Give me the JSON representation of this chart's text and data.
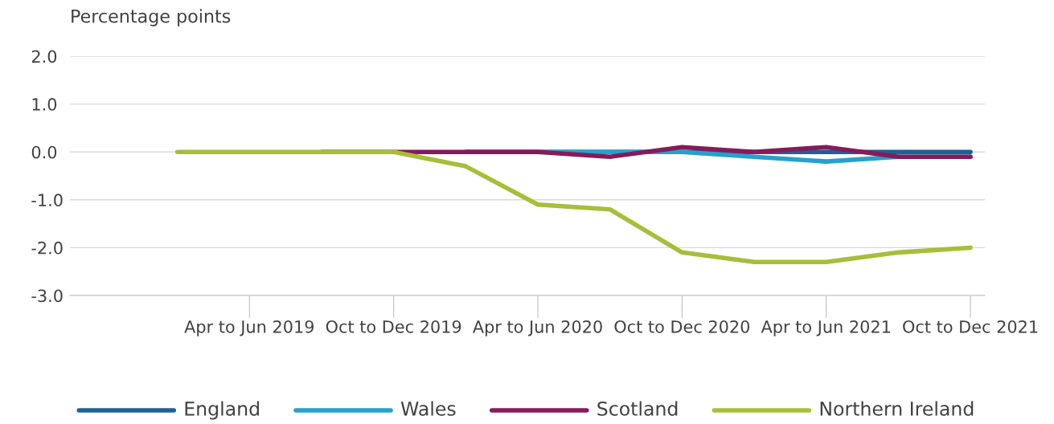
{
  "chart_data": {
    "type": "line",
    "ylabel": "Percentage points",
    "categories": [
      null,
      "Apr to Jun 2019",
      null,
      "Oct to Dec 2019",
      null,
      "Apr to Jun 2020",
      null,
      "Oct to Dec 2020",
      null,
      "Apr to Jun 2021",
      null,
      "Oct to Dec 2021"
    ],
    "series": [
      {
        "name": "England",
        "color": "#206095",
        "values": [
          null,
          null,
          null,
          null,
          0,
          0,
          0,
          0,
          0,
          0,
          0,
          0
        ]
      },
      {
        "name": "Wales",
        "color": "#27a0cc",
        "values": [
          null,
          null,
          null,
          null,
          0,
          0,
          0,
          0,
          -0.1,
          -0.2,
          -0.1,
          -0.1
        ]
      },
      {
        "name": "Scotland",
        "color": "#871a5b",
        "values": [
          null,
          null,
          0,
          0,
          0,
          0,
          -0.1,
          0.1,
          0,
          0.1,
          -0.1,
          -0.1
        ]
      },
      {
        "name": "Northern Ireland",
        "color": "#a8bd3a",
        "values": [
          0,
          0,
          0,
          0,
          -0.3,
          -1.1,
          -1.2,
          -2.1,
          -2.3,
          -2.3,
          -2.1,
          -2.0
        ]
      }
    ],
    "ylim": [
      -3,
      2
    ],
    "yticks": [
      {
        "value": 2,
        "label": "2.0"
      },
      {
        "value": 1,
        "label": "1.0"
      },
      {
        "value": 0,
        "label": "0.0"
      },
      {
        "value": -1,
        "label": "-1.0"
      },
      {
        "value": -2,
        "label": "-2.0"
      },
      {
        "value": -3,
        "label": "-3.0"
      }
    ],
    "grid": "y",
    "legend": "bottom",
    "marker": "none",
    "line_style": "solid"
  }
}
